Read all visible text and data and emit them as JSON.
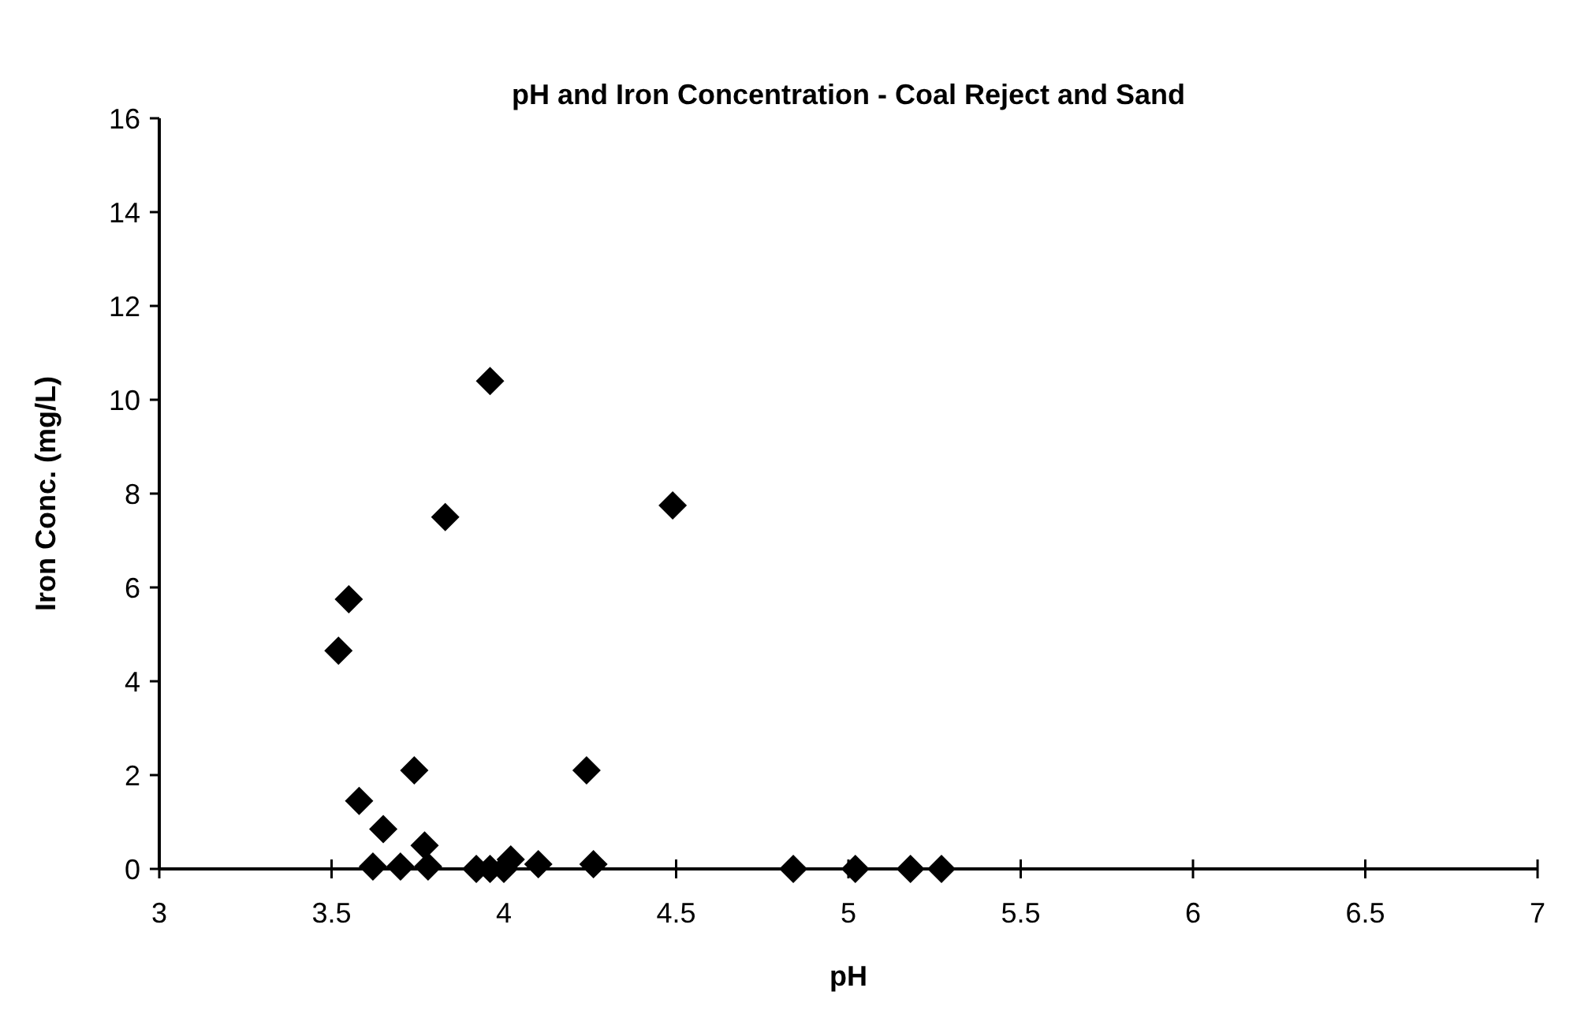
{
  "chart_data": {
    "type": "scatter",
    "title": "pH and Iron Concentration - Coal Reject and Sand",
    "xlabel": "pH",
    "ylabel": "Iron Conc. (mg/L)",
    "x": [
      3.96,
      3.83,
      4.49,
      3.55,
      3.52,
      3.74,
      4.24,
      3.58,
      3.65,
      3.77,
      3.62,
      3.7,
      3.78,
      3.92,
      3.96,
      4.0,
      4.02,
      4.1,
      4.26,
      4.84,
      5.02,
      5.18,
      5.27
    ],
    "values": [
      10.4,
      7.5,
      7.75,
      5.75,
      4.65,
      2.1,
      2.1,
      1.45,
      0.85,
      0.5,
      0.05,
      0.05,
      0.05,
      0,
      0,
      0,
      0.2,
      0.1,
      0.1,
      0,
      0,
      0,
      0
    ],
    "color": "#000000",
    "marker": "diamond",
    "xlim": [
      3,
      7
    ],
    "xticks": [
      3,
      3.5,
      4,
      4.5,
      5,
      5.5,
      6,
      6.5,
      7
    ],
    "ylim": [
      0,
      16
    ],
    "yticks": [
      0,
      2,
      4,
      6,
      8,
      10,
      12,
      14,
      16
    ],
    "grid": false
  }
}
